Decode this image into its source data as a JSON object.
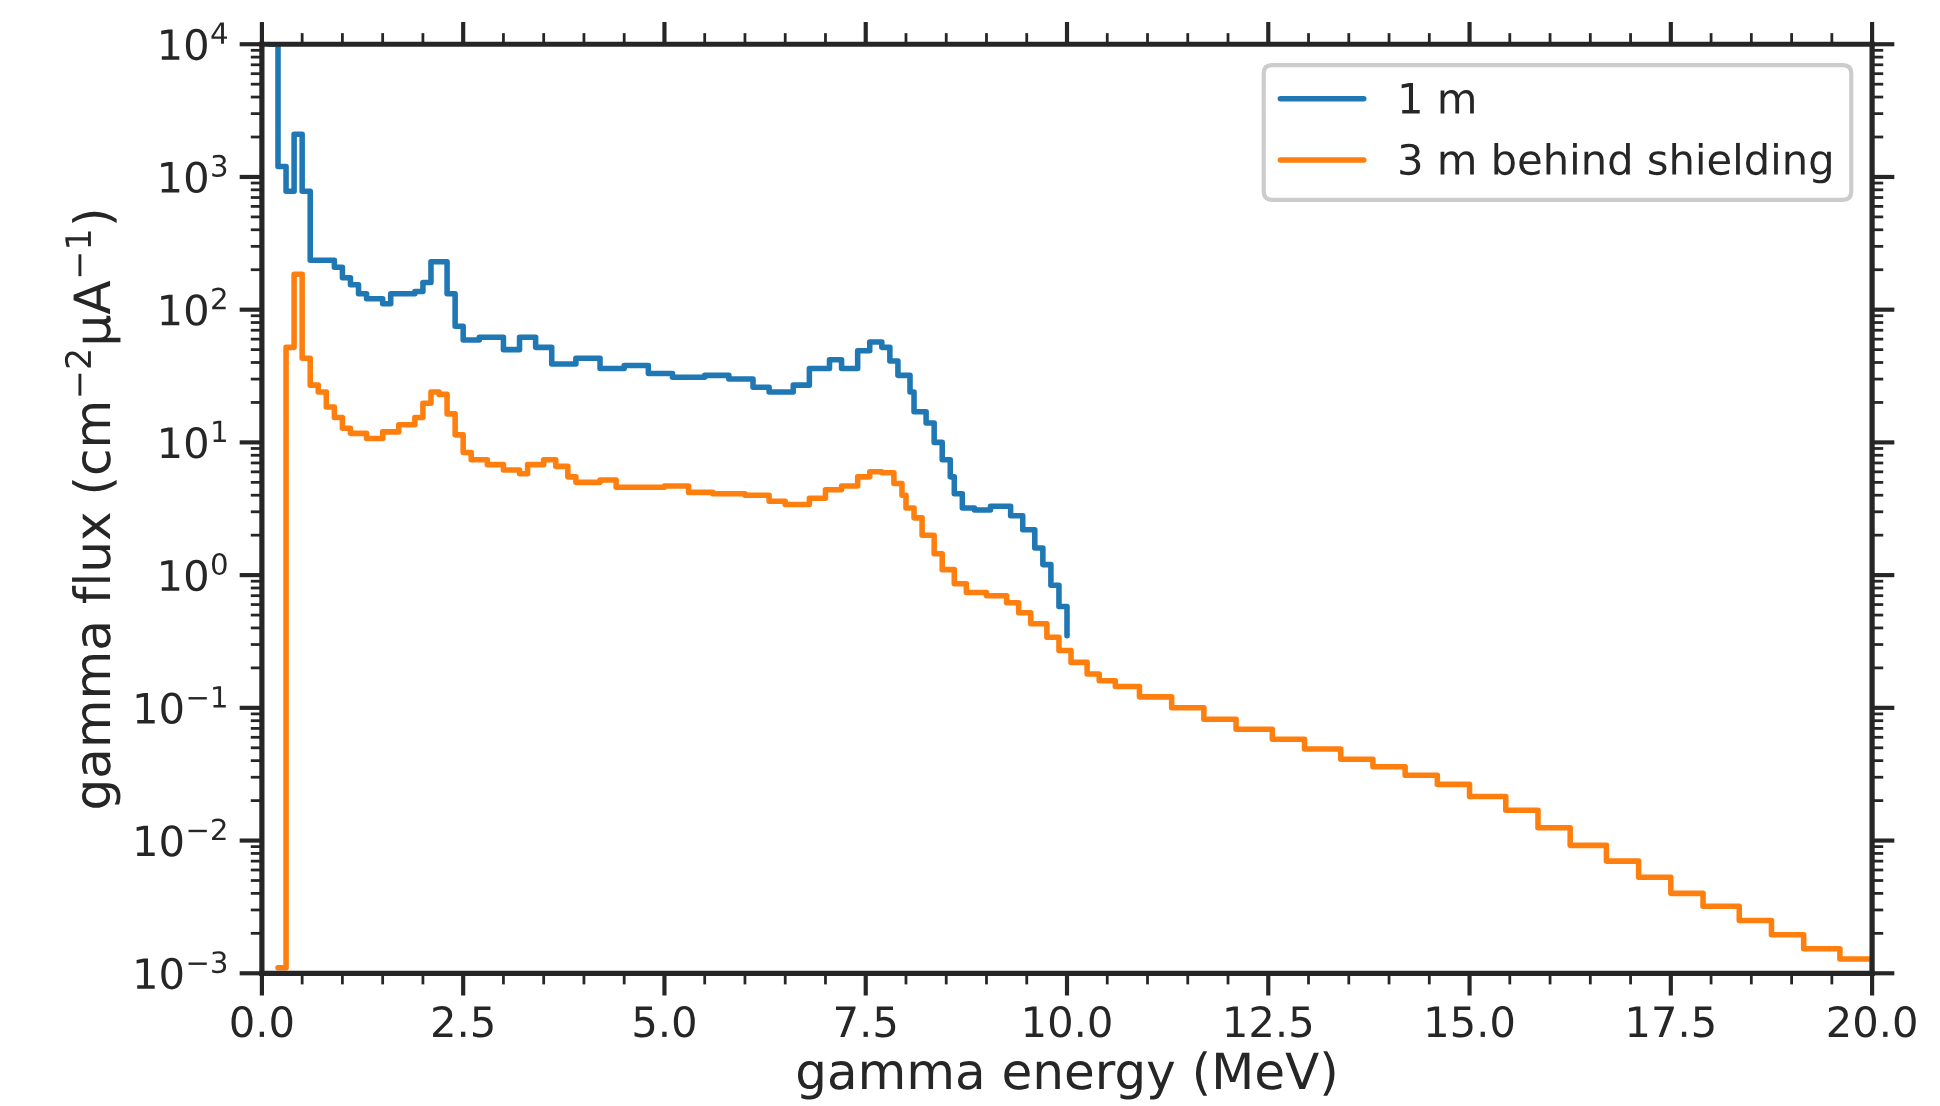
{
  "chart_data": {
    "type": "step",
    "xlabel": "gamma energy (MeV)",
    "ylabel": "gamma flux (cm$^{−2}$μA$^{−1}$)",
    "log": "y",
    "grid": false,
    "legend": "top right",
    "xlim": [
      0,
      20
    ],
    "xticks": [
      {
        "value": 0,
        "label": "0.0"
      },
      {
        "value": 2.5,
        "label": "2.5"
      },
      {
        "value": 5,
        "label": "5.0"
      },
      {
        "value": 7.5,
        "label": "7.5"
      },
      {
        "value": 10,
        "label": "10.0"
      },
      {
        "value": 12.5,
        "label": "12.5"
      },
      {
        "value": 15,
        "label": "15.0"
      },
      {
        "value": 17.5,
        "label": "17.5"
      },
      {
        "value": 20,
        "label": "20.0"
      }
    ],
    "ylim": [
      0.001,
      10000
    ],
    "yticks": [
      {
        "value": 0.001,
        "label": "10$^{−3}$"
      },
      {
        "value": 0.01,
        "label": "10$^{−2}$"
      },
      {
        "value": 0.1,
        "label": "10$^{−1}$"
      },
      {
        "value": 1,
        "label": "10$^{0}$"
      },
      {
        "value": 10,
        "label": "10$^{1}$"
      },
      {
        "value": 100,
        "label": "10$^{2}$"
      },
      {
        "value": 1000,
        "label": "10$^{3}$"
      },
      {
        "value": 10000,
        "label": "10$^{4}$"
      }
    ],
    "series": [
      {
        "name": "1 m",
        "color": "#1f77b4",
        "x": [
          0.1,
          0.2,
          0.3,
          0.4,
          0.5,
          0.6,
          0.9,
          1.0,
          1.1,
          1.2,
          1.3,
          1.5,
          1.6,
          1.9,
          2.0,
          2.1,
          2.3,
          2.4,
          2.5,
          2.7,
          3.0,
          3.2,
          3.4,
          3.6,
          3.9,
          4.2,
          4.5,
          4.8,
          5.1,
          5.5,
          5.8,
          6.1,
          6.3,
          6.6,
          6.8,
          7.05,
          7.2,
          7.4,
          7.55,
          7.7,
          7.8,
          7.9,
          8.05,
          8.1,
          8.25,
          8.35,
          8.45,
          8.55,
          8.6,
          8.7,
          8.85,
          9.05,
          9.3,
          9.45,
          9.6,
          9.7,
          9.8,
          9.9,
          10.0
        ],
        "values": [
          10000,
          1200,
          780,
          2100,
          780,
          236,
          209,
          174,
          154,
          132,
          121,
          111,
          132,
          137,
          160,
          230,
          132,
          75,
          59,
          62,
          50,
          62,
          52,
          39,
          43,
          36,
          38,
          33,
          31,
          32,
          30,
          26,
          24,
          27,
          36,
          42,
          36,
          49,
          57,
          52,
          41,
          32,
          24,
          17,
          14,
          10,
          7.4,
          5.5,
          4.1,
          3.2,
          3.1,
          3.3,
          2.8,
          2.2,
          1.6,
          1.2,
          0.84,
          0.58,
          0.35
        ]
      },
      {
        "name": "3 m behind shielding",
        "color": "#ff7f0e",
        "x": [
          0.2,
          0.3,
          0.4,
          0.5,
          0.6,
          0.7,
          0.8,
          0.9,
          1.0,
          1.1,
          1.3,
          1.5,
          1.7,
          1.9,
          2.0,
          2.1,
          2.2,
          2.3,
          2.4,
          2.5,
          2.6,
          2.8,
          3.0,
          3.2,
          3.3,
          3.5,
          3.65,
          3.8,
          3.9,
          4.2,
          4.4,
          4.7,
          5.0,
          5.3,
          5.6,
          6.0,
          6.3,
          6.5,
          6.8,
          7.0,
          7.2,
          7.4,
          7.55,
          7.7,
          7.85,
          7.95,
          8.0,
          8.1,
          8.2,
          8.35,
          8.45,
          8.6,
          8.75,
          9.0,
          9.25,
          9.4,
          9.55,
          9.75,
          9.9,
          10.05,
          10.25,
          10.4,
          10.6,
          10.9,
          11.3,
          11.7,
          12.1,
          12.55,
          12.95,
          13.4,
          13.8,
          14.2,
          14.6,
          15.0,
          15.45,
          15.85,
          16.25,
          16.7,
          17.1,
          17.5,
          17.9,
          18.35,
          18.75,
          19.15,
          19.6,
          20.0
        ],
        "values": [
          0.0011,
          52,
          185,
          43,
          27,
          24,
          18.5,
          15.4,
          12.8,
          11.7,
          10.7,
          12,
          13.6,
          15.4,
          19.7,
          24,
          23,
          16.4,
          11.4,
          8.4,
          7.4,
          6.8,
          6.2,
          5.8,
          6.8,
          7.4,
          6.6,
          5.5,
          5.0,
          5.2,
          4.6,
          4.6,
          4.7,
          4.2,
          4.1,
          4.0,
          3.6,
          3.4,
          3.8,
          4.4,
          4.7,
          5.5,
          6.0,
          5.9,
          4.9,
          4.0,
          3.2,
          2.7,
          2.0,
          1.45,
          1.1,
          0.86,
          0.74,
          0.7,
          0.62,
          0.52,
          0.43,
          0.34,
          0.27,
          0.22,
          0.18,
          0.16,
          0.145,
          0.121,
          0.1,
          0.082,
          0.069,
          0.058,
          0.049,
          0.041,
          0.036,
          0.031,
          0.0265,
          0.0215,
          0.0169,
          0.0125,
          0.0092,
          0.007,
          0.0053,
          0.004,
          0.0032,
          0.0025,
          0.00195,
          0.00153,
          0.00128,
          0.00107
        ]
      }
    ]
  }
}
